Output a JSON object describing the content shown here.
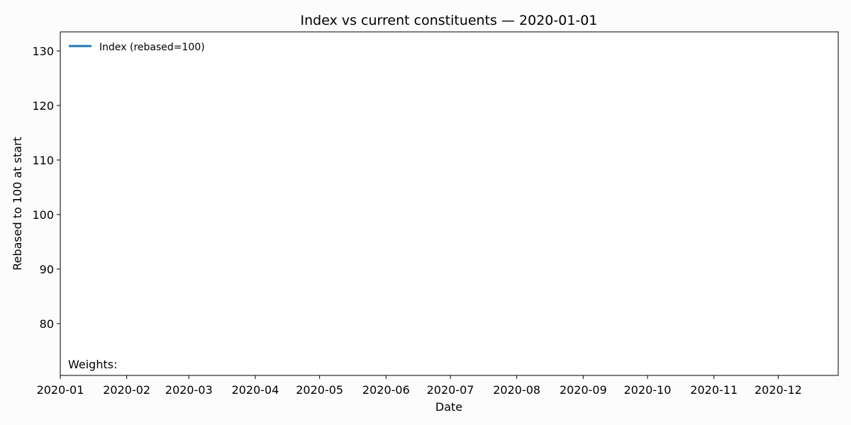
{
  "chart_data": {
    "type": "line",
    "title": "Index vs current constituents — 2020-01-01",
    "xlabel": "Date",
    "ylabel": "Rebased to 100 at start",
    "xlim": [
      "2020-01-01",
      "2020-12-29"
    ],
    "ylim": [
      70.5,
      133.5
    ],
    "x_ticks": [
      "2020-01",
      "2020-02",
      "2020-03",
      "2020-04",
      "2020-05",
      "2020-06",
      "2020-07",
      "2020-08",
      "2020-09",
      "2020-10",
      "2020-11",
      "2020-12"
    ],
    "y_ticks": [
      80,
      90,
      100,
      110,
      120,
      130
    ],
    "grid": false,
    "legend_position": "top-left",
    "series": [
      {
        "name": "Index (rebased=100)",
        "color": "#1f77b4",
        "x": [],
        "y": []
      }
    ],
    "annotations": [
      {
        "text": "Weights:",
        "position": "bottom-left"
      }
    ]
  }
}
